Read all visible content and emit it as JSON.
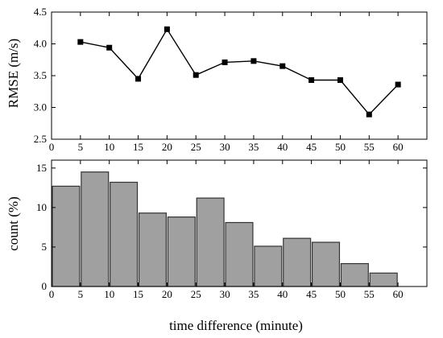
{
  "chart_data": [
    {
      "type": "line",
      "ylabel": "RMSE (m/s)",
      "xlim": [
        0,
        65
      ],
      "ylim": [
        2.5,
        4.5
      ],
      "xticks": [
        0,
        5,
        10,
        15,
        20,
        25,
        30,
        35,
        40,
        45,
        50,
        55,
        60
      ],
      "yticks": [
        "2.5",
        "3.0",
        "3.5",
        "4.0",
        "4.5"
      ],
      "x": [
        5,
        10,
        15,
        20,
        25,
        30,
        35,
        40,
        45,
        50,
        55,
        60
      ],
      "y": [
        4.03,
        3.94,
        3.45,
        4.23,
        3.51,
        3.71,
        3.73,
        3.65,
        3.43,
        3.43,
        2.89,
        3.36
      ],
      "marker": "square",
      "grid": false
    },
    {
      "type": "bar",
      "xlabel": "time difference (minute)",
      "ylabel": "count (%)",
      "xlim": [
        0,
        65
      ],
      "ylim": [
        0,
        16
      ],
      "xticks": [
        0,
        5,
        10,
        15,
        20,
        25,
        30,
        35,
        40,
        45,
        50,
        55,
        60
      ],
      "yticks": [
        "0",
        "5",
        "10",
        "15"
      ],
      "bins": [
        [
          0,
          5
        ],
        [
          5,
          10
        ],
        [
          10,
          15
        ],
        [
          15,
          20
        ],
        [
          20,
          25
        ],
        [
          25,
          30
        ],
        [
          30,
          35
        ],
        [
          35,
          40
        ],
        [
          40,
          45
        ],
        [
          45,
          50
        ],
        [
          50,
          55
        ],
        [
          55,
          60
        ]
      ],
      "values": [
        12.7,
        14.5,
        13.2,
        9.3,
        8.8,
        11.2,
        8.1,
        5.1,
        6.1,
        5.6,
        2.9,
        1.7
      ],
      "bar_color": "#a0a0a0",
      "grid": false
    }
  ]
}
